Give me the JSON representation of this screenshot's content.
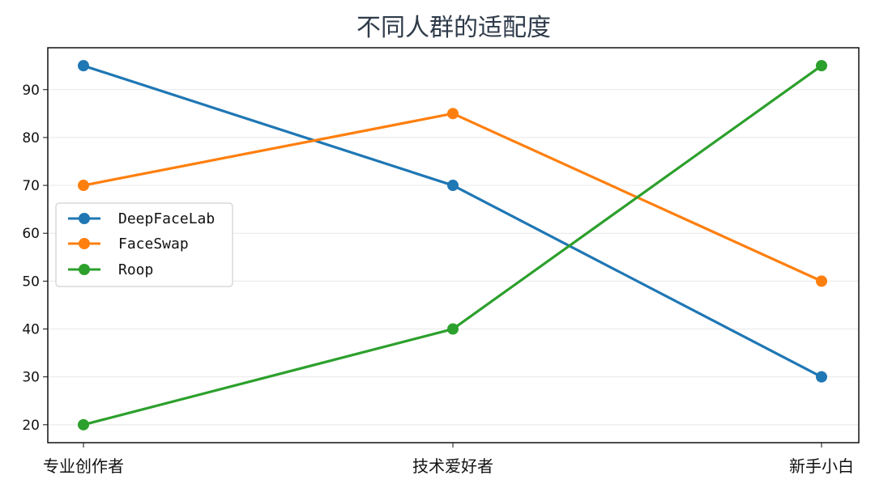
{
  "chart_data": {
    "type": "line",
    "title": "不同人群的适配度",
    "xlabel": "",
    "ylabel": "",
    "categories": [
      "专业创作者",
      "技术爱好者",
      "新手小白"
    ],
    "series": [
      {
        "name": "DeepFaceLab",
        "values": [
          95,
          70,
          30
        ],
        "color": "#1f77b4"
      },
      {
        "name": "FaceSwap",
        "values": [
          70,
          85,
          50
        ],
        "color": "#ff7f0e"
      },
      {
        "name": "Roop",
        "values": [
          20,
          40,
          95
        ],
        "color": "#2ca02c"
      }
    ],
    "yticks": [
      20,
      30,
      40,
      50,
      60,
      70,
      80,
      90
    ],
    "ylim": [
      16.25,
      98.75
    ],
    "grid": true,
    "legend_position": "center-left"
  }
}
